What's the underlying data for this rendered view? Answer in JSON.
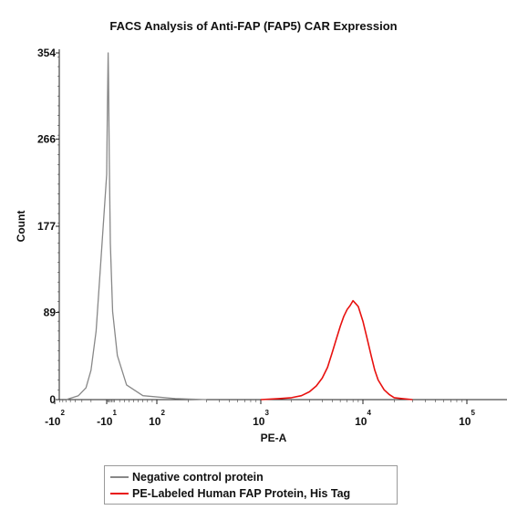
{
  "chart_data": {
    "type": "line",
    "title": "FACS Analysis of Anti-FAP (FAP5) CAR Expression",
    "xlabel": "PE-A",
    "ylabel": "Count",
    "x_scale": "biexponential",
    "ylim": [
      0,
      354
    ],
    "y_ticks": [
      {
        "value": 0,
        "label": "0"
      },
      {
        "value": 89,
        "label": "89"
      },
      {
        "value": 177,
        "label": "177"
      },
      {
        "value": 266,
        "label": "266"
      },
      {
        "value": 354,
        "label": "354"
      }
    ],
    "x_ticks": [
      {
        "value": -100,
        "base": "-10",
        "exp": "2"
      },
      {
        "value": -10,
        "base": "-10",
        "exp": "1"
      },
      {
        "value": 100,
        "base": "10",
        "exp": "2"
      },
      {
        "value": 1000,
        "base": "10",
        "exp": "3"
      },
      {
        "value": 10000,
        "base": "10",
        "exp": "4"
      },
      {
        "value": 100000,
        "base": "10",
        "exp": "5"
      }
    ],
    "grid": false,
    "legend_position": "bottom",
    "series": [
      {
        "name": "Negative control protein",
        "color": "#888888",
        "x": [
          -60,
          -35,
          -25,
          -20,
          -16,
          -13,
          -10,
          -8,
          -6,
          -5,
          -3,
          0,
          5,
          15,
          35,
          70,
          150,
          300
        ],
        "y": [
          0,
          4,
          12,
          30,
          70,
          140,
          230,
          300,
          354,
          330,
          250,
          160,
          90,
          45,
          15,
          4,
          1,
          0
        ]
      },
      {
        "name": "PE-Labeled Human FAP Protein, His Tag",
        "color": "#e8110f",
        "x": [
          1000,
          1500,
          2000,
          2500,
          3000,
          3500,
          4000,
          4500,
          5000,
          5500,
          6000,
          6500,
          7000,
          7500,
          8000,
          8500,
          9000,
          10000,
          11000,
          12000,
          13000,
          14000,
          16000,
          18000,
          20000,
          24000,
          30000
        ],
        "y": [
          0,
          1,
          2,
          4,
          8,
          14,
          22,
          33,
          48,
          62,
          75,
          85,
          92,
          96,
          101,
          98,
          95,
          80,
          62,
          45,
          30,
          20,
          10,
          5,
          2,
          1,
          0
        ]
      }
    ]
  }
}
